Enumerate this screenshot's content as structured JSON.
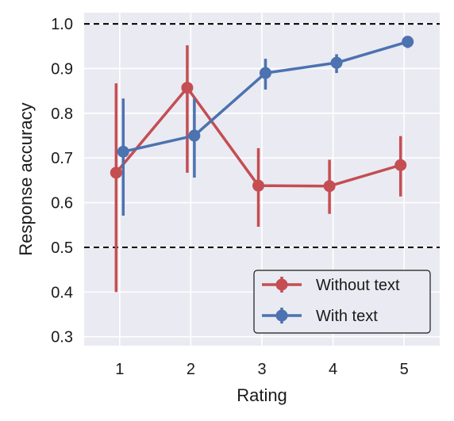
{
  "chart_data": {
    "type": "line",
    "xlabel": "Rating",
    "ylabel": "Response accuracy",
    "x": [
      1,
      2,
      3,
      4,
      5
    ],
    "xlim": [
      0.5,
      5.5
    ],
    "ylim": [
      0.28,
      1.025
    ],
    "yticks": [
      0.3,
      0.4,
      0.5,
      0.6,
      0.7,
      0.8,
      0.9,
      1.0
    ],
    "ytick_labels": [
      "0.3",
      "0.4",
      "0.5",
      "0.6",
      "0.7",
      "0.8",
      "0.9",
      "1.0"
    ],
    "xtick_labels": [
      "1",
      "2",
      "3",
      "4",
      "5"
    ],
    "grid": true,
    "background": "#eaeaf2",
    "reference_lines": [
      0.5,
      1.0
    ],
    "legend_position": "lower-right",
    "series": [
      {
        "name": "Without text",
        "color": "#c44e52",
        "values": [
          0.667,
          0.857,
          0.638,
          0.637,
          0.684
        ],
        "ci_low": [
          0.4,
          0.667,
          0.546,
          0.575,
          0.614
        ],
        "ci_high": [
          0.867,
          0.952,
          0.722,
          0.696,
          0.749
        ],
        "x_offset": -0.05
      },
      {
        "name": "With text",
        "color": "#4c72b0",
        "values": [
          0.714,
          0.75,
          0.89,
          0.913,
          0.96
        ],
        "ci_low": [
          0.571,
          0.656,
          0.853,
          0.89,
          0.946
        ],
        "ci_high": [
          0.833,
          0.833,
          0.922,
          0.932,
          0.972
        ],
        "x_offset": 0.05
      }
    ]
  }
}
